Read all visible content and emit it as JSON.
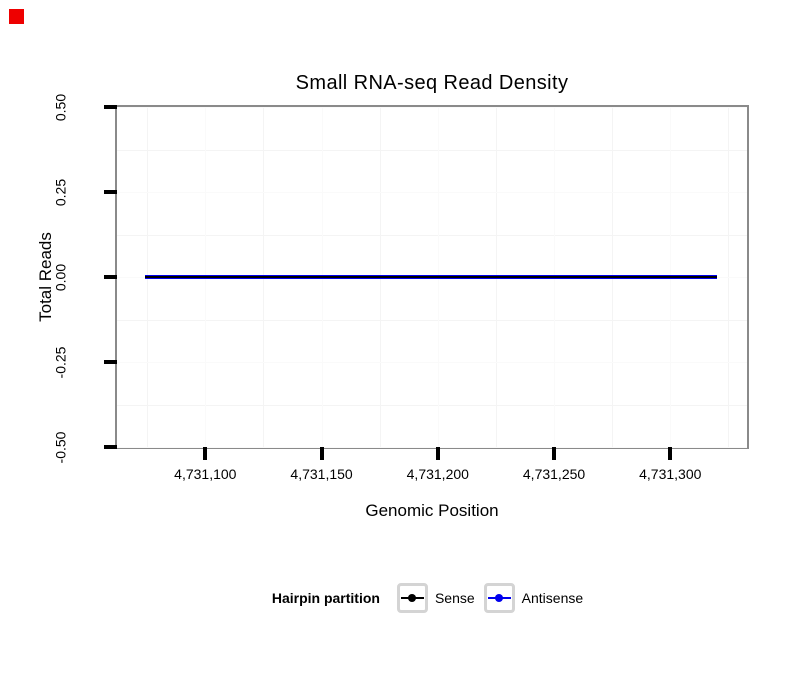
{
  "chart_data": {
    "type": "line",
    "title": "Small RNA-seq Read Density",
    "xlabel": "Genomic Position",
    "ylabel": "Total Reads",
    "x_range": [
      4731062,
      4731333
    ],
    "y_range": [
      -0.5,
      0.5
    ],
    "x_ticks": [
      {
        "value": 4731100,
        "label": "4,731,100"
      },
      {
        "value": 4731150,
        "label": "4,731,150"
      },
      {
        "value": 4731200,
        "label": "4,731,200"
      },
      {
        "value": 4731250,
        "label": "4,731,250"
      },
      {
        "value": 4731300,
        "label": "4,731,300"
      }
    ],
    "y_ticks": [
      {
        "value": 0.5,
        "label": "0.50"
      },
      {
        "value": 0.25,
        "label": "0.25"
      },
      {
        "value": 0.0,
        "label": "0.00"
      },
      {
        "value": -0.25,
        "label": "-0.25"
      },
      {
        "value": -0.5,
        "label": "-0.50"
      }
    ],
    "grid": {
      "minor_visible": true,
      "major_visible": false
    },
    "series": [
      {
        "name": "Sense",
        "color": "#000000",
        "x": [
          4731074,
          4731320
        ],
        "y": [
          0,
          0
        ]
      },
      {
        "name": "Antisense",
        "color": "#0000ee",
        "x": [
          4731074,
          4731320
        ],
        "y": [
          0,
          0
        ]
      }
    ],
    "legend": {
      "title": "Hairpin partition",
      "position": "bottom",
      "items": [
        {
          "label": "Sense",
          "color": "#000000"
        },
        {
          "label": "Antisense",
          "color": "#0000ee"
        }
      ]
    }
  },
  "colors": {
    "background": "#ffffff",
    "panel_border": "#8a8a8a",
    "axis_tick": "#000000",
    "grid_minor": "#f4f4f4",
    "grid_major": "#fafafa",
    "legend_key_border": "#d4d4d4",
    "text": "#000000",
    "red_marker": "#ee0000"
  }
}
